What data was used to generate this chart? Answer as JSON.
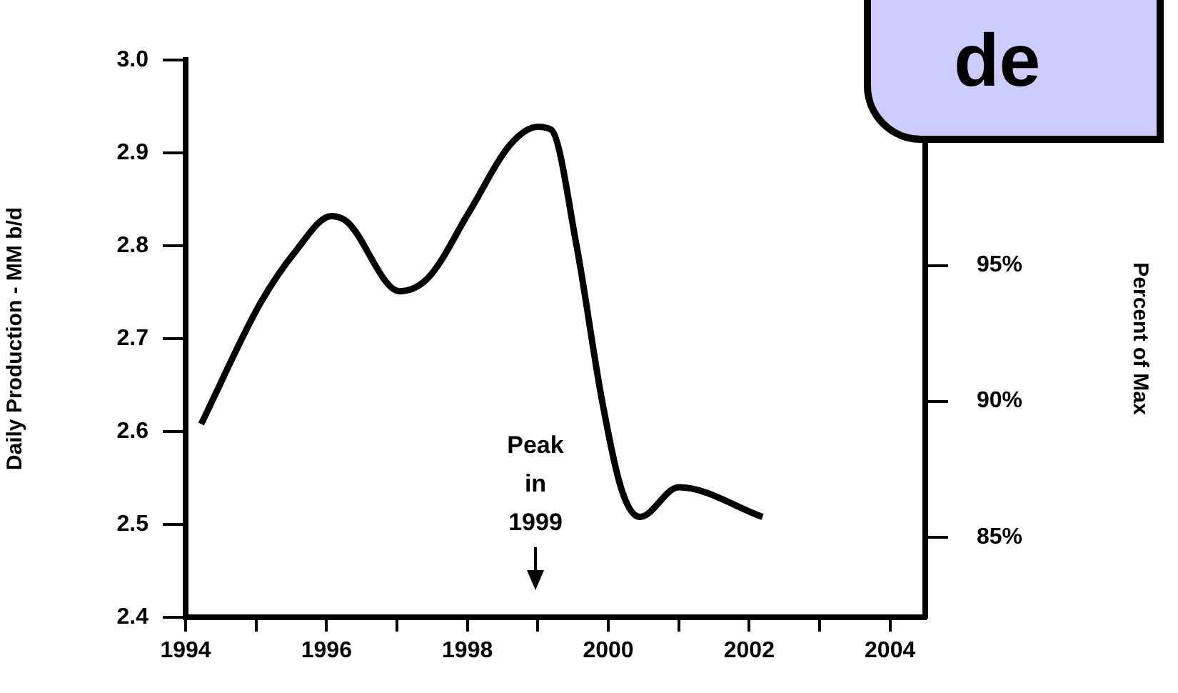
{
  "chart_data": {
    "type": "line",
    "ylabel": "Daily Production - MM b/d",
    "y2label": "Percent of Max",
    "annotations": [
      "de",
      "Peak in 1999"
    ],
    "series": [
      {
        "color": "#000000",
        "x": [
          1994.22,
          1995.06,
          1995.56,
          1996.07,
          1996.29,
          1997.04,
          1997.45,
          1998.03,
          1998.61,
          1999.0,
          1999.19,
          1999.55,
          1999.91,
          2000.2,
          2000.45,
          2001.0,
          2002.19
        ],
        "values": [
          2.608,
          2.738,
          2.794,
          2.832,
          2.826,
          2.751,
          2.766,
          2.837,
          2.909,
          2.928,
          2.925,
          2.8,
          2.634,
          2.535,
          2.508,
          2.54,
          2.508
        ]
      }
    ],
    "xlim": [
      1994,
      2004.5
    ],
    "xticks": [
      1994,
      {
        "value": 1995,
        "label": null
      },
      1996,
      {
        "value": 1997,
        "label": null
      },
      1998,
      {
        "value": 1999,
        "label": null
      },
      2000,
      {
        "value": 2001,
        "label": null
      },
      2002,
      {
        "value": 2003,
        "label": null
      },
      2004
    ],
    "ylim": [
      2.4,
      3.0
    ],
    "yticks": [
      2.4,
      2.5,
      2.6,
      2.7,
      2.8,
      2.9,
      {
        "value": 3.0,
        "label": "3.0"
      }
    ],
    "y2lim": [
      82.05,
      102.56
    ],
    "y2ticks": [
      {
        "value": 85,
        "label": "85%"
      },
      {
        "value": 90,
        "label": "90%"
      },
      {
        "value": 95,
        "label": "95%"
      }
    ],
    "grid": false,
    "legend": false,
    "marker": "none",
    "line_style": "solid"
  }
}
